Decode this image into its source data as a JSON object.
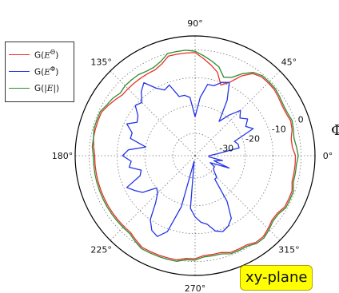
{
  "chart_data": {
    "type": "polar-line",
    "theta_ticks": [
      "0°",
      "45°",
      "90°",
      "135°",
      "180°",
      "225°",
      "270°",
      "315°"
    ],
    "r_ticks": [
      "-30",
      "-20",
      "-10",
      "0"
    ],
    "rlim": [
      -38,
      5
    ],
    "grid": true,
    "angle_symbol": "Φ",
    "legend_position": "upper-left",
    "series": [
      {
        "name": "G(E^Θ)",
        "label_main": "G(",
        "label_sym": "E",
        "label_sup": "Θ",
        "label_close": ")",
        "color": "#e8312b",
        "points": [
          [
            0,
            -2
          ],
          [
            5,
            -3
          ],
          [
            10,
            -3
          ],
          [
            15,
            -2
          ],
          [
            20,
            -1.5
          ],
          [
            25,
            -2
          ],
          [
            30,
            -2
          ],
          [
            35,
            -1.5
          ],
          [
            40,
            -1
          ],
          [
            45,
            -1
          ],
          [
            50,
            -1
          ],
          [
            55,
            -2
          ],
          [
            60,
            -5
          ],
          [
            65,
            -9
          ],
          [
            70,
            -11
          ],
          [
            75,
            -7
          ],
          [
            80,
            -5
          ],
          [
            85,
            -3
          ],
          [
            90,
            -1
          ],
          [
            95,
            -1
          ],
          [
            100,
            -1
          ],
          [
            105,
            -1
          ],
          [
            110,
            -3
          ],
          [
            115,
            -4
          ],
          [
            120,
            -4
          ],
          [
            125,
            -4
          ],
          [
            130,
            -4
          ],
          [
            135,
            -4
          ],
          [
            140,
            -4
          ],
          [
            145,
            -3
          ],
          [
            150,
            -2
          ],
          [
            155,
            -1
          ],
          [
            160,
            -1
          ],
          [
            165,
            -1
          ],
          [
            170,
            -1
          ],
          [
            175,
            -1.5
          ],
          [
            180,
            -2
          ],
          [
            185,
            -2
          ],
          [
            190,
            -2
          ],
          [
            195,
            -2
          ],
          [
            200,
            -2
          ],
          [
            205,
            -2
          ],
          [
            210,
            -2
          ],
          [
            215,
            -2
          ],
          [
            220,
            -2
          ],
          [
            225,
            -2
          ],
          [
            230,
            -2
          ],
          [
            235,
            -1
          ],
          [
            240,
            0
          ],
          [
            245,
            0
          ],
          [
            250,
            0
          ],
          [
            255,
            0
          ],
          [
            260,
            0
          ],
          [
            265,
            -1
          ],
          [
            270,
            -1
          ],
          [
            275,
            -2
          ],
          [
            280,
            -2
          ],
          [
            285,
            -2
          ],
          [
            290,
            -1
          ],
          [
            295,
            -1
          ],
          [
            300,
            -1
          ],
          [
            305,
            0
          ],
          [
            310,
            0
          ],
          [
            315,
            -1
          ],
          [
            320,
            -2
          ],
          [
            325,
            -2
          ],
          [
            330,
            -1
          ],
          [
            335,
            -1
          ],
          [
            340,
            -1
          ],
          [
            345,
            -2
          ],
          [
            350,
            -2
          ],
          [
            355,
            -2
          ]
        ]
      },
      {
        "name": "G(E^Φ)",
        "label_main": "G(",
        "label_sym": "E",
        "label_sup": "Φ",
        "label_close": ")",
        "color": "#2335e8",
        "points": [
          [
            0,
            -33
          ],
          [
            5,
            -30
          ],
          [
            10,
            -22
          ],
          [
            15,
            -22
          ],
          [
            20,
            -23
          ],
          [
            25,
            -15
          ],
          [
            30,
            -17
          ],
          [
            35,
            -15
          ],
          [
            40,
            -17
          ],
          [
            45,
            -15
          ],
          [
            50,
            -19
          ],
          [
            55,
            -23
          ],
          [
            60,
            -15
          ],
          [
            65,
            -9
          ],
          [
            70,
            -10
          ],
          [
            75,
            -12
          ],
          [
            80,
            -12
          ],
          [
            85,
            -17
          ],
          [
            90,
            -24
          ],
          [
            95,
            -17
          ],
          [
            100,
            -16
          ],
          [
            105,
            -16
          ],
          [
            110,
            -11
          ],
          [
            115,
            -12
          ],
          [
            120,
            -10
          ],
          [
            125,
            -6
          ],
          [
            130,
            -8
          ],
          [
            135,
            -11
          ],
          [
            140,
            -10
          ],
          [
            145,
            -13
          ],
          [
            150,
            -14
          ],
          [
            155,
            -11
          ],
          [
            160,
            -14
          ],
          [
            165,
            -14
          ],
          [
            170,
            -20
          ],
          [
            175,
            -14
          ],
          [
            180,
            -12
          ],
          [
            185,
            -15
          ],
          [
            190,
            -14
          ],
          [
            195,
            -18
          ],
          [
            200,
            -17
          ],
          [
            205,
            -11
          ],
          [
            210,
            -13
          ],
          [
            215,
            -15
          ],
          [
            220,
            -20
          ],
          [
            225,
            -19
          ],
          [
            230,
            -16
          ],
          [
            235,
            -10
          ],
          [
            240,
            -7
          ],
          [
            245,
            -6
          ],
          [
            250,
            -9
          ],
          [
            255,
            -19
          ],
          [
            260,
            -36
          ],
          [
            265,
            -19
          ],
          [
            270,
            -16
          ],
          [
            275,
            -14
          ],
          [
            280,
            -13
          ],
          [
            285,
            -10
          ],
          [
            290,
            -9
          ],
          [
            295,
            -10
          ],
          [
            300,
            -12
          ],
          [
            305,
            -18
          ],
          [
            310,
            -27
          ],
          [
            315,
            -27
          ],
          [
            320,
            -29
          ],
          [
            325,
            -30
          ],
          [
            330,
            -30
          ],
          [
            335,
            -32
          ],
          [
            340,
            -25
          ],
          [
            345,
            -31
          ],
          [
            350,
            -28
          ],
          [
            355,
            -33
          ]
        ]
      },
      {
        "name": "G(|E|)",
        "label_main": "G(|",
        "label_sym": "E",
        "label_sup": "",
        "label_close": "|)",
        "color": "#2e8b2e",
        "points": [
          [
            0,
            -1
          ],
          [
            5,
            -1.5
          ],
          [
            10,
            -2
          ],
          [
            15,
            -1.5
          ],
          [
            20,
            -1
          ],
          [
            25,
            -1.5
          ],
          [
            30,
            -1.5
          ],
          [
            35,
            -1
          ],
          [
            40,
            -0.5
          ],
          [
            45,
            -0.5
          ],
          [
            50,
            -0.5
          ],
          [
            55,
            -1.5
          ],
          [
            60,
            -4
          ],
          [
            65,
            -7
          ],
          [
            70,
            -8
          ],
          [
            75,
            -5
          ],
          [
            80,
            -3.5
          ],
          [
            85,
            -2
          ],
          [
            90,
            -0.5
          ],
          [
            95,
            0
          ],
          [
            100,
            0
          ],
          [
            105,
            0
          ],
          [
            110,
            -2
          ],
          [
            115,
            -3
          ],
          [
            120,
            -3
          ],
          [
            125,
            -2.5
          ],
          [
            130,
            -2.5
          ],
          [
            135,
            -2.5
          ],
          [
            140,
            -3
          ],
          [
            145,
            -2
          ],
          [
            150,
            -1.5
          ],
          [
            155,
            -0.5
          ],
          [
            160,
            -0.5
          ],
          [
            165,
            -0.5
          ],
          [
            170,
            -1
          ],
          [
            175,
            -1
          ],
          [
            180,
            -1.5
          ],
          [
            185,
            -1.5
          ],
          [
            190,
            -1.5
          ],
          [
            195,
            -1.5
          ],
          [
            200,
            -1.5
          ],
          [
            205,
            -1.5
          ],
          [
            210,
            -1.5
          ],
          [
            215,
            -1.5
          ],
          [
            220,
            -1.5
          ],
          [
            225,
            -1.5
          ],
          [
            230,
            -1.5
          ],
          [
            235,
            -0.5
          ],
          [
            240,
            0.5
          ],
          [
            245,
            0.5
          ],
          [
            250,
            0.5
          ],
          [
            255,
            0.5
          ],
          [
            260,
            0.5
          ],
          [
            265,
            -0.5
          ],
          [
            270,
            -0.5
          ],
          [
            275,
            -1.5
          ],
          [
            280,
            -1.5
          ],
          [
            285,
            -1.5
          ],
          [
            290,
            -0.5
          ],
          [
            295,
            -0.5
          ],
          [
            300,
            -0.5
          ],
          [
            305,
            0.5
          ],
          [
            310,
            0.5
          ],
          [
            315,
            -0.5
          ],
          [
            320,
            -1.5
          ],
          [
            325,
            -1.5
          ],
          [
            330,
            -0.5
          ],
          [
            335,
            -0.5
          ],
          [
            340,
            -0.5
          ],
          [
            345,
            -1.5
          ],
          [
            350,
            -1.5
          ],
          [
            355,
            -1.5
          ]
        ]
      }
    ]
  },
  "badge": {
    "label": "xy-plane",
    "color": "#ffff00"
  }
}
